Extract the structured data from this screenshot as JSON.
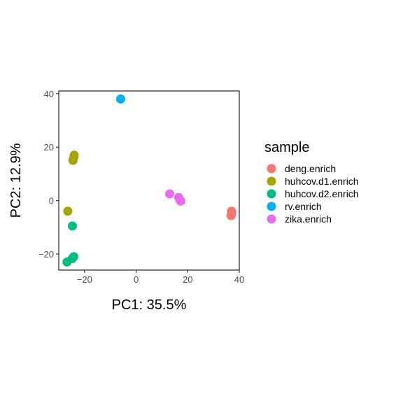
{
  "chart_data": {
    "type": "scatter",
    "xlabel": "PC1: 35.5%",
    "ylabel": "PC2: 12.9%",
    "xlim": [
      -30,
      40
    ],
    "ylim": [
      -26,
      41
    ],
    "xticks": [
      -20,
      0,
      20,
      40
    ],
    "yticks": [
      -20,
      0,
      20,
      40
    ],
    "xtick_labels": [
      "−20",
      "0",
      "20",
      "40"
    ],
    "ytick_labels": [
      "−20",
      "0",
      "20",
      "40"
    ],
    "grid": false,
    "legend": {
      "title": "sample",
      "placement": "right"
    },
    "series": [
      {
        "name": "deng.enrich",
        "color": "#F8766D",
        "points": [
          [
            37,
            -4
          ],
          [
            37,
            -4.7
          ],
          [
            37,
            -5.2
          ],
          [
            36.8,
            -5.6
          ],
          [
            37.1,
            -4.3
          ]
        ]
      },
      {
        "name": "huhcov.d1.enrich",
        "color": "#A3A500",
        "points": [
          [
            -24,
            17
          ],
          [
            -24.2,
            16
          ],
          [
            -24.5,
            15
          ],
          [
            -26.5,
            -4
          ]
        ]
      },
      {
        "name": "huhcov.d2.enrich",
        "color": "#00BF7D",
        "points": [
          [
            -24.7,
            -9.5
          ],
          [
            -24.2,
            -21
          ],
          [
            -24.8,
            -21.7
          ],
          [
            -26.8,
            -23
          ]
        ]
      },
      {
        "name": "rv.enrich",
        "color": "#00B0F6",
        "points": [
          [
            -6,
            38
          ]
        ]
      },
      {
        "name": "zika.enrich",
        "color": "#E76BF3",
        "points": [
          [
            13,
            2.5
          ],
          [
            16.5,
            1.2
          ],
          [
            17,
            0.3
          ],
          [
            17.3,
            -0.2
          ]
        ]
      }
    ]
  }
}
